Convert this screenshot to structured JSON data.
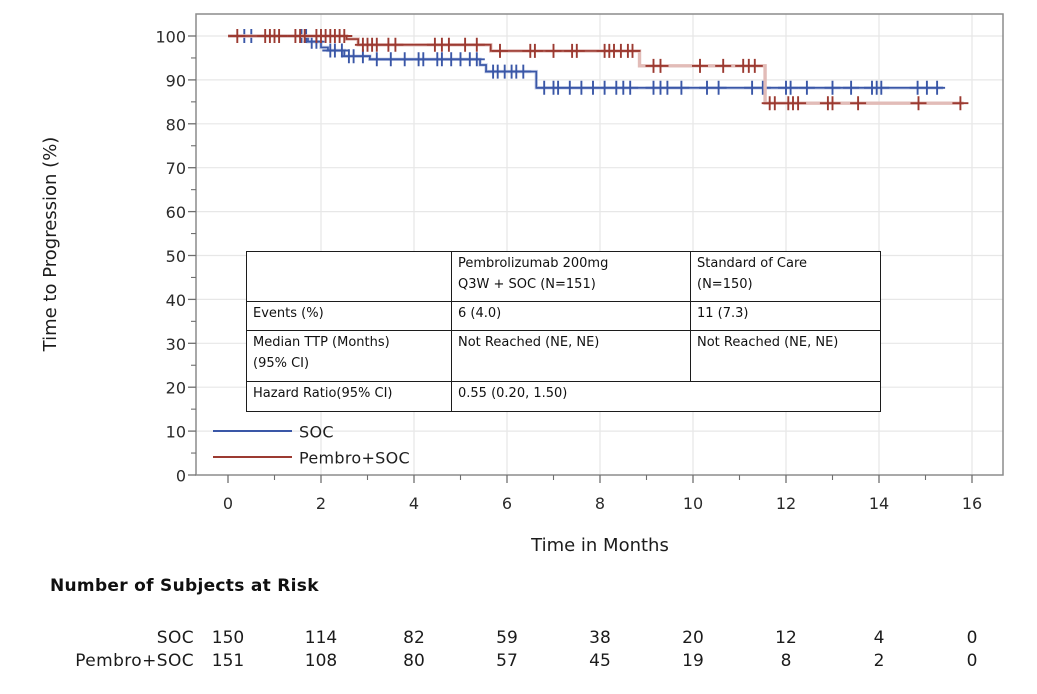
{
  "chart_data": {
    "type": "line",
    "subtype": "kaplan-meier-step",
    "title": "",
    "xlabel": "Time in Months",
    "ylabel": "Time to Progression (%)",
    "xlim": [
      0,
      16
    ],
    "ylim": [
      0,
      100
    ],
    "x_ticks": [
      0,
      2,
      4,
      6,
      8,
      10,
      12,
      14,
      16
    ],
    "y_ticks": [
      0,
      10,
      20,
      30,
      40,
      50,
      60,
      70,
      80,
      90,
      100
    ],
    "grid": true,
    "legend_position": "inside-bottom-left",
    "series": [
      {
        "name": "SOC",
        "color": "#3a57a7",
        "halo_color": "#c6cfe8",
        "steps": [
          [
            0,
            100
          ],
          [
            1.72,
            98.7
          ],
          [
            2.0,
            97.4
          ],
          [
            2.15,
            96.7
          ],
          [
            2.5,
            95.4
          ],
          [
            3.05,
            94.7
          ],
          [
            5.42,
            93.4
          ],
          [
            5.55,
            91.9
          ],
          [
            6.63,
            88.2
          ]
        ],
        "end_x": 15.38,
        "censor_marks_x": [
          0.35,
          0.5,
          1.58,
          1.68,
          1.8,
          1.9,
          2.2,
          2.3,
          2.45,
          2.6,
          2.7,
          2.9,
          3.2,
          3.5,
          3.8,
          4.1,
          4.2,
          4.5,
          4.6,
          4.8,
          5.0,
          5.2,
          5.35,
          5.7,
          5.8,
          5.95,
          6.1,
          6.2,
          6.35,
          6.8,
          7.0,
          7.1,
          7.35,
          7.6,
          7.85,
          8.1,
          8.35,
          8.5,
          8.65,
          9.15,
          9.3,
          9.45,
          9.75,
          10.3,
          10.55,
          11.27,
          11.5,
          12.0,
          12.1,
          12.45,
          13.0,
          13.4,
          13.85,
          13.95,
          14.05,
          14.83,
          15.03,
          15.25
        ]
      },
      {
        "name": "Pembro+SOC",
        "color": "#9c3a31",
        "halo_color": "#e2bcb8",
        "light_from_x": 8.85,
        "steps": [
          [
            0,
            100
          ],
          [
            2.55,
            99.3
          ],
          [
            2.8,
            98.0
          ],
          [
            5.65,
            96.6
          ],
          [
            8.85,
            93.2
          ],
          [
            11.55,
            84.7
          ]
        ],
        "end_x": 15.82,
        "censor_marks_x": [
          0.2,
          0.8,
          0.9,
          1.0,
          1.1,
          1.45,
          1.55,
          1.65,
          1.9,
          2.0,
          2.1,
          2.2,
          2.3,
          2.4,
          2.5,
          2.9,
          3.0,
          3.1,
          3.2,
          3.45,
          3.6,
          4.45,
          4.6,
          4.75,
          5.1,
          5.35,
          5.85,
          6.5,
          6.6,
          7.0,
          7.4,
          7.5,
          8.1,
          8.2,
          8.3,
          8.45,
          8.6,
          8.7,
          9.15,
          9.3,
          10.15,
          10.65,
          11.08,
          11.2,
          11.33,
          11.65,
          11.76,
          12.05,
          12.15,
          12.26,
          12.9,
          13.0,
          13.55,
          14.85,
          15.75
        ]
      }
    ]
  },
  "stats_table": {
    "col_headers": [
      "",
      "Pembrolizumab 200mg\nQ3W + SOC  (N=151)",
      "Standard of Care\n(N=150)"
    ],
    "rows": [
      {
        "label": "Events (%)",
        "pembro": "6 (4.0)",
        "soc": "11 (7.3)"
      },
      {
        "label": "Median TTP  (Months)\n(95% CI)",
        "pembro": "Not Reached (NE, NE)",
        "soc": "Not Reached (NE, NE)"
      },
      {
        "label": "Hazard Ratio(95% CI)",
        "value": "0.55 (0.20, 1.50)"
      }
    ]
  },
  "legend": [
    {
      "label": "SOC",
      "color": "#3a57a7"
    },
    {
      "label": "Pembro+SOC",
      "color": "#9c3a31"
    }
  ],
  "risk_table": {
    "heading": "Number of Subjects at Risk",
    "months": [
      0,
      2,
      4,
      6,
      8,
      10,
      12,
      14,
      16
    ],
    "rows": [
      {
        "label": "SOC",
        "counts": [
          150,
          114,
          82,
          59,
          38,
          20,
          12,
          4,
          0
        ]
      },
      {
        "label": "Pembro+SOC",
        "counts": [
          151,
          108,
          80,
          57,
          45,
          19,
          8,
          2,
          0
        ]
      }
    ]
  }
}
